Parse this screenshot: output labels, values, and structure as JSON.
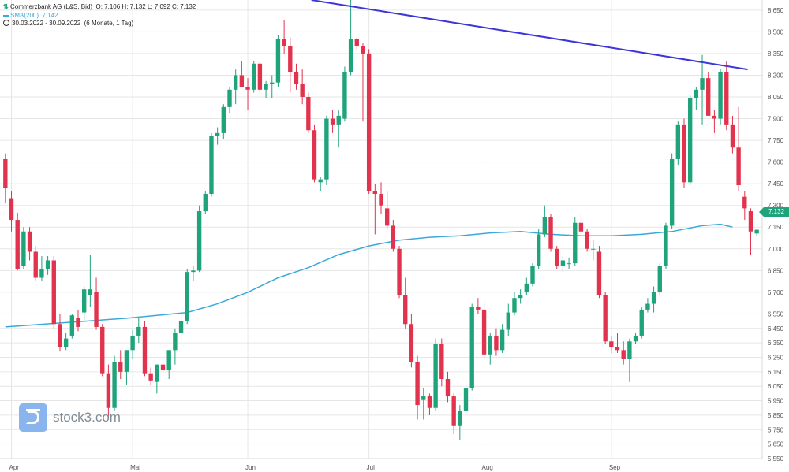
{
  "header": {
    "instrument": "Commerzbank AG (L&S, Bid)",
    "ohlc": "O: 7,106  H: 7,132  L: 7,092  C: 7,132",
    "sma_label": "SMA(200)",
    "sma_value": "7,142",
    "range": "30.03.2022 - 30.09.2022",
    "period": "(6 Monate, 1 Tag)"
  },
  "last_price": "7,132",
  "watermark": "stock3.com",
  "colors": {
    "up": "#1fa37a",
    "down": "#e2334e",
    "sma": "#3aa9d9",
    "trendline": "#3c36d6",
    "grid": "#e6e6e6"
  },
  "chart_data": {
    "type": "candlestick",
    "ylim": [
      5.55,
      8.72
    ],
    "y_ticks": [
      "8,650",
      "8,500",
      "8,350",
      "8,200",
      "8,050",
      "7,900",
      "7,750",
      "7,600",
      "7,450",
      "7,300",
      "7,150",
      "7,000",
      "6,850",
      "6,700",
      "6,550",
      "6,450",
      "6,350",
      "6,250",
      "6,150",
      "6,050",
      "5,950",
      "5,850",
      "5,750",
      "5,650",
      "5,550"
    ],
    "x_tick_labels": [
      "Apr",
      "Mai",
      "Jun",
      "Jul",
      "Aug",
      "Sep"
    ],
    "x_tick_index": [
      1,
      21,
      40,
      60,
      79,
      100
    ],
    "grid": true,
    "candles": [
      [
        7.62,
        7.66,
        7.32,
        7.42
      ],
      [
        7.35,
        7.4,
        7.12,
        7.2
      ],
      [
        7.2,
        7.25,
        6.85,
        6.86
      ],
      [
        6.88,
        7.15,
        6.86,
        7.12
      ],
      [
        7.12,
        7.15,
        6.92,
        6.98
      ],
      [
        6.98,
        7.02,
        6.78,
        6.8
      ],
      [
        6.8,
        6.95,
        6.78,
        6.86
      ],
      [
        6.86,
        6.95,
        6.82,
        6.92
      ],
      [
        6.92,
        6.95,
        6.45,
        6.48
      ],
      [
        6.48,
        6.55,
        6.29,
        6.32
      ],
      [
        6.32,
        6.42,
        6.3,
        6.38
      ],
      [
        6.4,
        6.55,
        6.38,
        6.54
      ],
      [
        6.52,
        6.58,
        6.43,
        6.46
      ],
      [
        6.56,
        6.74,
        6.5,
        6.72
      ],
      [
        6.68,
        6.96,
        6.6,
        6.72
      ],
      [
        6.7,
        6.8,
        6.44,
        6.46
      ],
      [
        6.46,
        6.48,
        6.12,
        6.14
      ],
      [
        6.14,
        6.2,
        5.82,
        5.9
      ],
      [
        5.9,
        6.26,
        5.88,
        6.22
      ],
      [
        6.22,
        6.3,
        6.1,
        6.15
      ],
      [
        6.15,
        6.3,
        6.06,
        6.3
      ],
      [
        6.3,
        6.44,
        6.24,
        6.4
      ],
      [
        6.4,
        6.52,
        6.35,
        6.46
      ],
      [
        6.46,
        6.5,
        6.12,
        6.14
      ],
      [
        6.14,
        6.18,
        6.06,
        6.09
      ],
      [
        6.08,
        6.2,
        6.0,
        6.2
      ],
      [
        6.2,
        6.24,
        6.12,
        6.16
      ],
      [
        6.16,
        6.3,
        6.1,
        6.3
      ],
      [
        6.3,
        6.45,
        6.2,
        6.42
      ],
      [
        6.42,
        6.56,
        6.36,
        6.5
      ],
      [
        6.5,
        6.86,
        6.48,
        6.84
      ],
      [
        6.84,
        6.88,
        6.78,
        6.85
      ],
      [
        6.85,
        7.3,
        6.84,
        7.26
      ],
      [
        7.26,
        7.4,
        7.24,
        7.38
      ],
      [
        7.38,
        7.8,
        7.36,
        7.78
      ],
      [
        7.78,
        7.84,
        7.72,
        7.8
      ],
      [
        7.8,
        8.0,
        7.76,
        7.98
      ],
      [
        7.98,
        8.12,
        7.94,
        8.1
      ],
      [
        8.1,
        8.24,
        8.0,
        8.2
      ],
      [
        8.2,
        8.3,
        8.14,
        8.12
      ],
      [
        8.12,
        8.18,
        7.96,
        8.1
      ],
      [
        8.1,
        8.3,
        8.08,
        8.28
      ],
      [
        8.28,
        8.3,
        8.08,
        8.1
      ],
      [
        8.1,
        8.16,
        8.04,
        8.14
      ],
      [
        8.14,
        8.2,
        8.04,
        8.15
      ],
      [
        8.15,
        8.48,
        8.12,
        8.45
      ],
      [
        8.45,
        8.58,
        8.35,
        8.4
      ],
      [
        8.4,
        8.46,
        8.08,
        8.22
      ],
      [
        8.22,
        8.28,
        8.1,
        8.14
      ],
      [
        8.14,
        8.24,
        8.0,
        8.05
      ],
      [
        8.05,
        8.08,
        7.8,
        7.82
      ],
      [
        7.82,
        7.86,
        7.46,
        7.48
      ],
      [
        7.46,
        7.5,
        7.4,
        7.48
      ],
      [
        7.48,
        7.92,
        7.44,
        7.9
      ],
      [
        7.9,
        7.96,
        7.8,
        7.86
      ],
      [
        7.86,
        7.96,
        7.7,
        7.92
      ],
      [
        7.9,
        8.26,
        7.88,
        8.22
      ],
      [
        8.22,
        8.82,
        8.2,
        8.45
      ],
      [
        8.45,
        8.46,
        8.38,
        8.4
      ],
      [
        8.4,
        8.42,
        7.88,
        8.35
      ],
      [
        8.35,
        8.38,
        7.38,
        7.4
      ],
      [
        7.4,
        7.45,
        7.1,
        7.38
      ],
      [
        7.38,
        7.46,
        7.24,
        7.3
      ],
      [
        7.28,
        7.4,
        7.14,
        7.16
      ],
      [
        7.16,
        7.2,
        6.98,
        7.0
      ],
      [
        7.0,
        7.02,
        6.66,
        6.68
      ],
      [
        6.68,
        6.8,
        6.45,
        6.48
      ],
      [
        6.48,
        6.55,
        6.18,
        6.22
      ],
      [
        6.22,
        6.26,
        5.82,
        5.92
      ],
      [
        5.96,
        6.04,
        5.82,
        5.98
      ],
      [
        5.98,
        6.0,
        5.85,
        5.9
      ],
      [
        5.9,
        6.38,
        5.88,
        6.34
      ],
      [
        6.34,
        6.38,
        6.05,
        6.1
      ],
      [
        6.1,
        6.15,
        5.94,
        5.98
      ],
      [
        5.98,
        6.0,
        5.72,
        5.78
      ],
      [
        5.78,
        5.92,
        5.68,
        5.88
      ],
      [
        5.88,
        6.08,
        5.86,
        6.04
      ],
      [
        6.04,
        6.62,
        6.02,
        6.6
      ],
      [
        6.6,
        6.66,
        6.55,
        6.58
      ],
      [
        6.58,
        6.64,
        6.24,
        6.27
      ],
      [
        6.27,
        6.42,
        6.2,
        6.4
      ],
      [
        6.4,
        6.45,
        6.26,
        6.3
      ],
      [
        6.3,
        6.48,
        6.28,
        6.44
      ],
      [
        6.44,
        6.62,
        6.4,
        6.56
      ],
      [
        6.56,
        6.7,
        6.54,
        6.66
      ],
      [
        6.66,
        6.72,
        6.62,
        6.68
      ],
      [
        6.7,
        6.8,
        6.68,
        6.76
      ],
      [
        6.76,
        6.9,
        6.74,
        6.88
      ],
      [
        6.88,
        7.14,
        6.86,
        7.1
      ],
      [
        7.1,
        7.3,
        7.08,
        7.22
      ],
      [
        7.22,
        7.24,
        6.98,
        7.0
      ],
      [
        7.0,
        7.02,
        6.86,
        6.88
      ],
      [
        6.88,
        6.95,
        6.84,
        6.92
      ],
      [
        6.9,
        6.94,
        6.86,
        6.9
      ],
      [
        6.9,
        7.22,
        6.88,
        7.18
      ],
      [
        7.18,
        7.24,
        7.1,
        7.12
      ],
      [
        7.12,
        7.14,
        6.98,
        7.0
      ],
      [
        7.0,
        7.06,
        6.92,
        7.0
      ],
      [
        6.98,
        7.02,
        6.66,
        6.68
      ],
      [
        6.68,
        6.7,
        6.34,
        6.36
      ],
      [
        6.36,
        6.4,
        6.28,
        6.32
      ],
      [
        6.32,
        6.42,
        6.28,
        6.3
      ],
      [
        6.3,
        6.36,
        6.2,
        6.24
      ],
      [
        6.24,
        6.38,
        6.08,
        6.36
      ],
      [
        6.36,
        6.42,
        6.34,
        6.4
      ],
      [
        6.4,
        6.6,
        6.38,
        6.58
      ],
      [
        6.58,
        6.66,
        6.56,
        6.62
      ],
      [
        6.62,
        6.74,
        6.56,
        6.7
      ],
      [
        6.7,
        6.9,
        6.68,
        6.88
      ],
      [
        6.88,
        7.18,
        6.86,
        7.16
      ],
      [
        7.16,
        7.66,
        7.14,
        7.62
      ],
      [
        7.62,
        7.88,
        7.58,
        7.86
      ],
      [
        7.86,
        7.9,
        7.42,
        7.46
      ],
      [
        7.46,
        8.06,
        7.44,
        8.04
      ],
      [
        8.04,
        8.12,
        7.96,
        8.1
      ],
      [
        8.1,
        8.34,
        7.86,
        8.18
      ],
      [
        8.18,
        8.22,
        7.92,
        7.92
      ],
      [
        7.92,
        7.96,
        7.8,
        7.9
      ],
      [
        7.9,
        8.24,
        7.86,
        8.22
      ],
      [
        8.22,
        8.3,
        7.82,
        7.86
      ],
      [
        7.86,
        7.92,
        7.66,
        7.7
      ],
      [
        7.7,
        7.98,
        7.4,
        7.44
      ],
      [
        7.36,
        7.4,
        7.2,
        7.28
      ],
      [
        7.26,
        7.28,
        6.96,
        7.12
      ],
      [
        7.106,
        7.132,
        7.092,
        7.132
      ]
    ],
    "sma200": [
      [
        0,
        6.46
      ],
      [
        10,
        6.49
      ],
      [
        20,
        6.52
      ],
      [
        30,
        6.56
      ],
      [
        35,
        6.62
      ],
      [
        40,
        6.7
      ],
      [
        45,
        6.8
      ],
      [
        50,
        6.87
      ],
      [
        55,
        6.96
      ],
      [
        60,
        7.02
      ],
      [
        65,
        7.06
      ],
      [
        70,
        7.08
      ],
      [
        75,
        7.09
      ],
      [
        80,
        7.11
      ],
      [
        85,
        7.12
      ],
      [
        90,
        7.1
      ],
      [
        95,
        7.09
      ],
      [
        100,
        7.09
      ],
      [
        105,
        7.1
      ],
      [
        110,
        7.12
      ],
      [
        115,
        7.16
      ],
      [
        118,
        7.17
      ],
      [
        120,
        7.15
      ]
    ],
    "trendline": [
      [
        51,
        8.72
      ],
      [
        123,
        8.24
      ]
    ]
  }
}
